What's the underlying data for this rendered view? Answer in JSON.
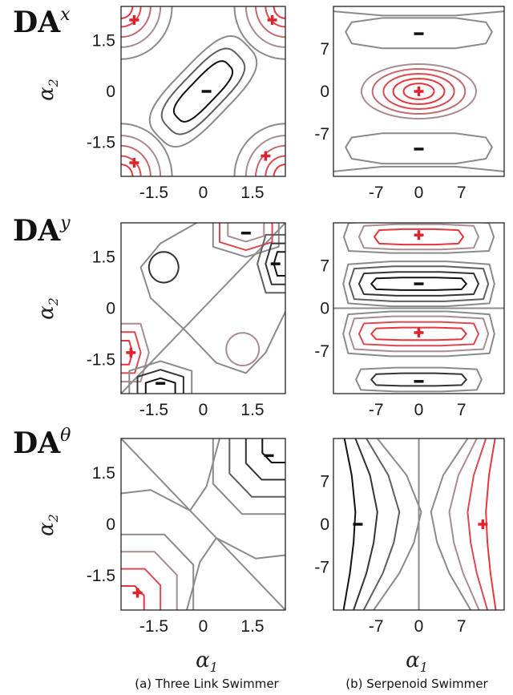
{
  "colors": {
    "positive": "#e0222c",
    "negative": "#111111",
    "level_red": [
      "#e8353c",
      "#d94a52",
      "#c26a6e",
      "#a98c8e"
    ],
    "level_gray": [
      "#8a8a8a",
      "#5f5f5f",
      "#333333",
      "#111111"
    ],
    "zero_line": "#8c8c8c"
  },
  "row_labels": [
    {
      "base": "DA",
      "sup": "x"
    },
    {
      "base": "DA",
      "sup": "y"
    },
    {
      "base": "DA",
      "sup": "θ"
    }
  ],
  "y_axis_label": {
    "base": "α",
    "sub": "2"
  },
  "x_axis_label": {
    "base": "α",
    "sub": "1"
  },
  "captions": {
    "left": "(a) Three Link Swimmer",
    "right": "(b) Serpenoid Swimmer"
  },
  "chart_data": [
    {
      "type": "contour",
      "panel": "three-link-DAx",
      "xticks": [
        "-1.5",
        "0",
        "1.5"
      ],
      "yticks": [
        "1.5",
        "0",
        "-1.5"
      ],
      "xlim": [
        -2.5,
        2.5
      ],
      "ylim": [
        -2.5,
        2.5
      ],
      "signs": [
        {
          "label": "+",
          "x": -2.1,
          "y": 2.1
        },
        {
          "label": "+",
          "x": 2.1,
          "y": 2.1
        },
        {
          "label": "-",
          "x": 0.1,
          "y": 0.0
        },
        {
          "label": "+",
          "x": -2.1,
          "y": -2.1
        },
        {
          "label": "+",
          "x": 1.9,
          "y": -1.9
        }
      ]
    },
    {
      "type": "contour",
      "panel": "serpenoid-DAx",
      "xticks": [
        "-7",
        "0",
        "7"
      ],
      "yticks": [
        "7",
        "0",
        "-7"
      ],
      "xlim": [
        -14,
        14
      ],
      "ylim": [
        -14,
        14
      ],
      "signs": [
        {
          "label": "-",
          "x": 0,
          "y": 9.5
        },
        {
          "label": "+",
          "x": 0,
          "y": 0
        },
        {
          "label": "-",
          "x": 0,
          "y": -9.5
        }
      ]
    },
    {
      "type": "contour",
      "panel": "three-link-DAy",
      "xticks": [
        "-1.5",
        "0",
        "1.5"
      ],
      "yticks": [
        "1.5",
        "0",
        "-1.5"
      ],
      "xlim": [
        -2.5,
        2.5
      ],
      "ylim": [
        -2.5,
        2.5
      ],
      "signs": [
        {
          "label": "-",
          "x": 1.3,
          "y": 2.2
        },
        {
          "label": "-",
          "x": 2.2,
          "y": 1.3
        },
        {
          "label": "+",
          "x": -2.2,
          "y": -1.3
        },
        {
          "label": "-",
          "x": -1.3,
          "y": -2.2
        }
      ]
    },
    {
      "type": "contour",
      "panel": "serpenoid-DAy",
      "xticks": [
        "-7",
        "0",
        "7"
      ],
      "yticks": [
        "7",
        "0",
        "-7"
      ],
      "xlim": [
        -14,
        14
      ],
      "ylim": [
        -14,
        14
      ],
      "signs": [
        {
          "label": "+",
          "x": 0,
          "y": 12
        },
        {
          "label": "-",
          "x": 0,
          "y": 4
        },
        {
          "label": "+",
          "x": 0,
          "y": -4
        },
        {
          "label": "-",
          "x": 0,
          "y": -12
        }
      ]
    },
    {
      "type": "contour",
      "panel": "three-link-DAtheta",
      "xticks": [
        "-1.5",
        "0",
        "1.5"
      ],
      "yticks": [
        "1.5",
        "0",
        "-1.5"
      ],
      "xlim": [
        -2.5,
        2.5
      ],
      "ylim": [
        -2.5,
        2.5
      ],
      "signs": [
        {
          "label": "-",
          "x": 2.0,
          "y": 2.0
        },
        {
          "label": "+",
          "x": -2.0,
          "y": -2.0
        }
      ]
    },
    {
      "type": "contour",
      "panel": "serpenoid-DAtheta",
      "xticks": [
        "-7",
        "0",
        "7"
      ],
      "yticks": [
        "7",
        "0",
        "-7"
      ],
      "xlim": [
        -14,
        14
      ],
      "ylim": [
        -14,
        14
      ],
      "signs": [
        {
          "label": "-",
          "x": -10,
          "y": 0
        },
        {
          "label": "+",
          "x": 10.5,
          "y": 0
        }
      ]
    }
  ]
}
